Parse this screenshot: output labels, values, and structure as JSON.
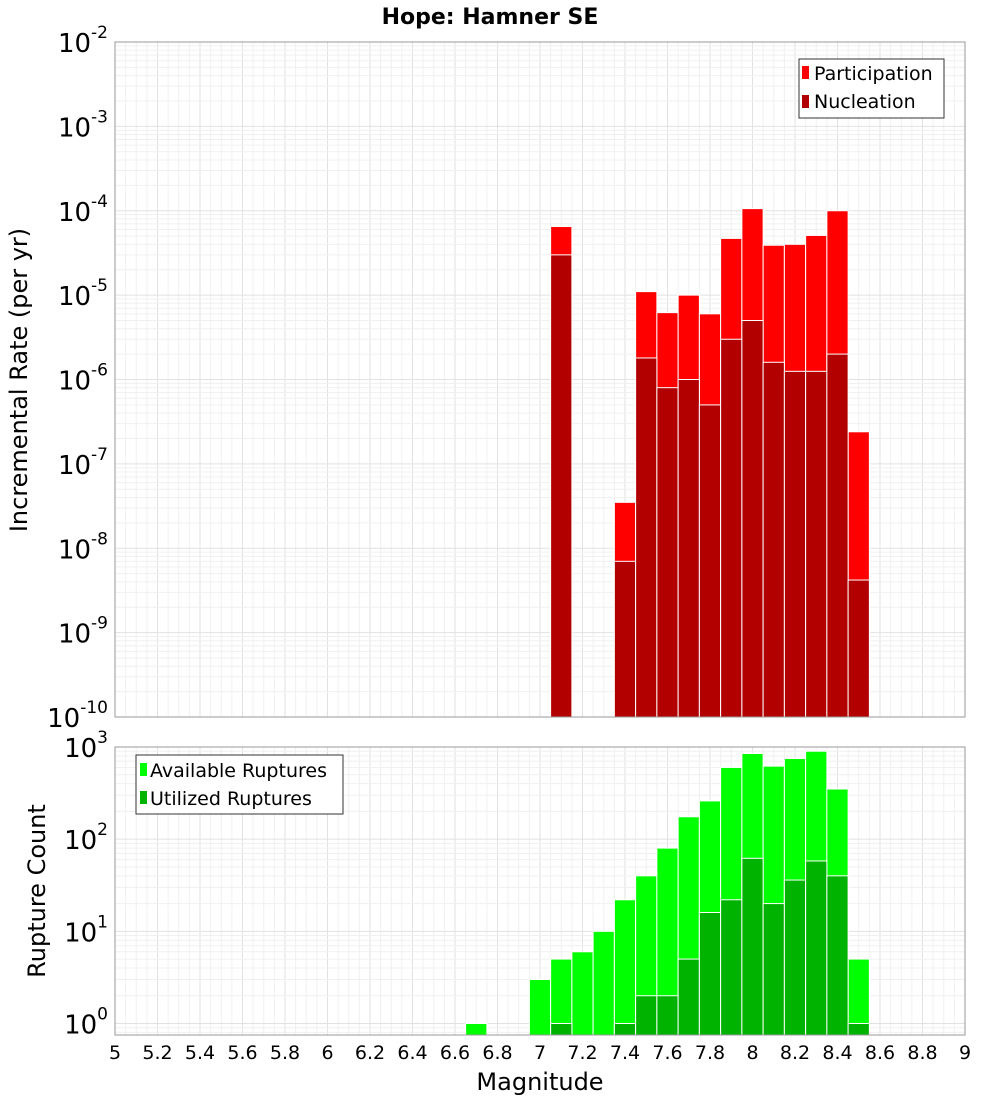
{
  "chart_data": [
    {
      "type": "bar",
      "title": "Hope: Hamner SE",
      "xlabel": "",
      "ylabel": "Incremental Rate (per yr)",
      "yscale": "log",
      "ylim_exp": [
        -10,
        -2
      ],
      "xlim": [
        5,
        9
      ],
      "bin_width": 0.1,
      "grid": true,
      "legend_position": "top-right",
      "x": [
        7.1,
        7.4,
        7.5,
        7.6,
        7.7,
        7.8,
        7.9,
        8.0,
        8.1,
        8.2,
        8.3,
        8.4,
        8.5
      ],
      "series": [
        {
          "name": "Participation",
          "color": "#ff0000",
          "values": [
            6.5e-05,
            3.5e-08,
            1.1e-05,
            6.2e-06,
            1e-05,
            6e-06,
            4.7e-05,
            0.000106,
            3.9e-05,
            4e-05,
            5.1e-05,
            0.0001,
            2.4e-07
          ]
        },
        {
          "name": "Nucleation",
          "color": "#b20000",
          "values": [
            3e-05,
            7e-09,
            1.8e-06,
            8e-07,
            1e-06,
            5e-07,
            3e-06,
            5e-06,
            1.6e-06,
            1.25e-06,
            1.25e-06,
            2e-06,
            4.2e-09
          ]
        }
      ]
    },
    {
      "type": "bar",
      "xlabel": "Magnitude",
      "ylabel": "Rupture Count",
      "yscale": "log",
      "ylim": [
        0.75,
        1000
      ],
      "y_tick_exps": [
        0,
        1,
        2,
        3
      ],
      "xlim": [
        5,
        9
      ],
      "bin_width": 0.1,
      "grid": true,
      "legend_position": "top-left",
      "x_ticks": [
        "5",
        "5.2",
        "5.4",
        "5.6",
        "5.8",
        "6",
        "6.2",
        "6.4",
        "6.6",
        "6.8",
        "7",
        "7.2",
        "7.4",
        "7.6",
        "7.8",
        "8",
        "8.2",
        "8.4",
        "8.6",
        "8.8",
        "9"
      ],
      "x": [
        6.7,
        7.0,
        7.1,
        7.2,
        7.3,
        7.4,
        7.5,
        7.6,
        7.7,
        7.8,
        7.9,
        8.0,
        8.1,
        8.2,
        8.3,
        8.4,
        8.5
      ],
      "series": [
        {
          "name": "Available Ruptures",
          "color": "#00ff00",
          "values": [
            1,
            3,
            5,
            6,
            10,
            22,
            40,
            80,
            175,
            260,
            600,
            850,
            620,
            750,
            900,
            350,
            5
          ]
        },
        {
          "name": "Utilized Ruptures",
          "color": "#00b300",
          "values": [
            0,
            0,
            1,
            0,
            0,
            1,
            2,
            2,
            5,
            16,
            22,
            62,
            20,
            36,
            58,
            40,
            1
          ]
        }
      ]
    }
  ]
}
